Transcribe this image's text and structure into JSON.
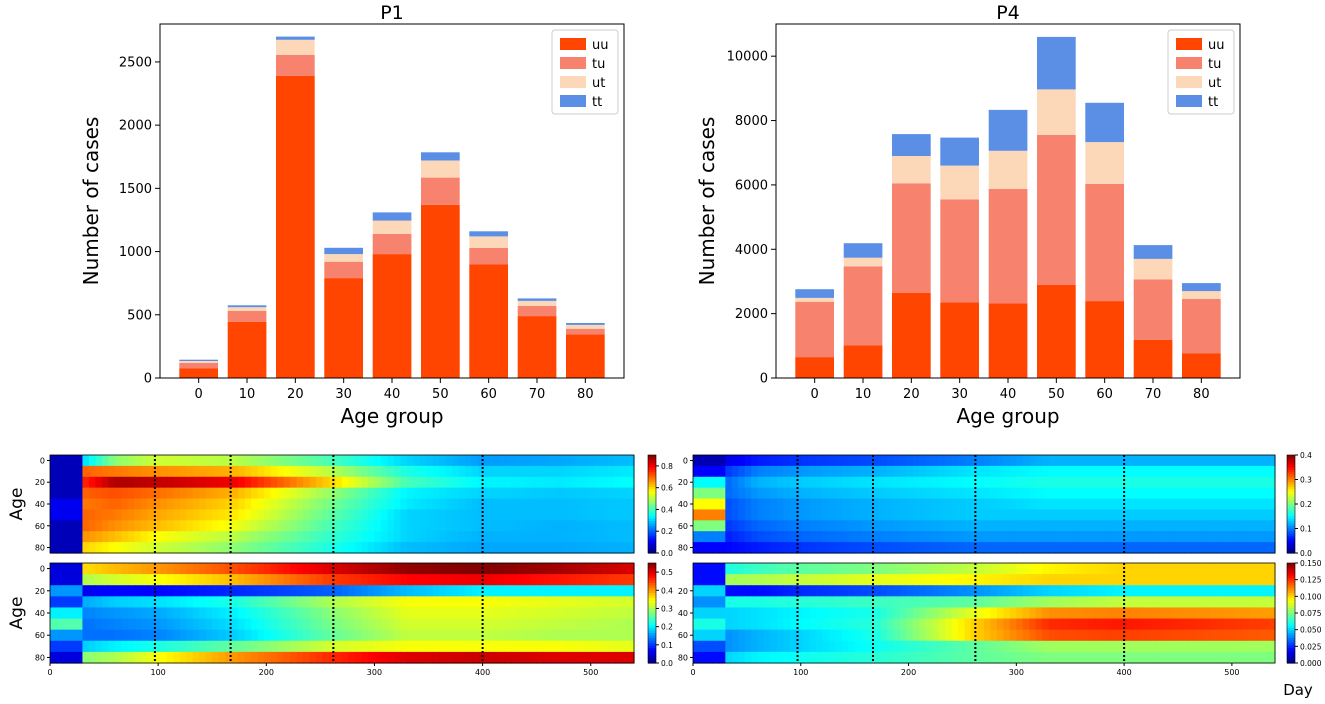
{
  "figure": {
    "day_label": "Day"
  },
  "colorbar_stops": [
    "#00007f",
    "#0000ff",
    "#007fff",
    "#00ffff",
    "#7fff7f",
    "#ffff00",
    "#ff7f00",
    "#ff0000",
    "#7f0000"
  ],
  "chart_data": [
    {
      "type": "bar",
      "stacked": true,
      "title": "P1",
      "xlabel": "Age group",
      "ylabel": "Number of cases",
      "categories": [
        "0",
        "10",
        "20",
        "30",
        "40",
        "50",
        "60",
        "70",
        "80"
      ],
      "xticks": [
        "0",
        "10",
        "20",
        "30",
        "40",
        "50",
        "60",
        "70",
        "80"
      ],
      "yticks": [
        0,
        500,
        1000,
        1500,
        2000,
        2500
      ],
      "ylim": [
        0,
        2800
      ],
      "legend_position": "top-right",
      "series": [
        {
          "name": "uu",
          "color": "#ff4500",
          "values": [
            75,
            445,
            2390,
            790,
            980,
            1370,
            900,
            490,
            345
          ]
        },
        {
          "name": "tu",
          "color": "#f7836f",
          "values": [
            45,
            85,
            165,
            130,
            160,
            215,
            130,
            80,
            45
          ]
        },
        {
          "name": "ut",
          "color": "#fcd8b8",
          "values": [
            15,
            30,
            120,
            60,
            105,
            135,
            90,
            40,
            30
          ]
        },
        {
          "name": "tt",
          "color": "#5b8fe6",
          "values": [
            10,
            15,
            25,
            50,
            65,
            65,
            40,
            20,
            15
          ]
        }
      ]
    },
    {
      "type": "bar",
      "stacked": true,
      "title": "P4",
      "xlabel": "Age group",
      "ylabel": "Number of cases",
      "categories": [
        "0",
        "10",
        "20",
        "30",
        "40",
        "50",
        "60",
        "70",
        "80"
      ],
      "xticks": [
        "0",
        "10",
        "20",
        "30",
        "40",
        "50",
        "60",
        "70",
        "80"
      ],
      "yticks": [
        0,
        2000,
        4000,
        6000,
        8000,
        10000
      ],
      "ylim": [
        0,
        11000
      ],
      "legend_position": "top-right",
      "series": [
        {
          "name": "uu",
          "color": "#ff4500",
          "values": [
            650,
            1020,
            2650,
            2350,
            2320,
            2900,
            2390,
            1180,
            760
          ]
        },
        {
          "name": "tu",
          "color": "#f7836f",
          "values": [
            1720,
            2450,
            3400,
            3200,
            3560,
            4650,
            3640,
            1880,
            1700
          ]
        },
        {
          "name": "ut",
          "color": "#fcd8b8",
          "values": [
            120,
            270,
            850,
            1050,
            1180,
            1420,
            1300,
            640,
            240
          ]
        },
        {
          "name": "tt",
          "color": "#5b8fe6",
          "values": [
            270,
            450,
            680,
            870,
            1270,
            1630,
            1220,
            430,
            250
          ]
        }
      ]
    },
    {
      "type": "heatmap",
      "panel": "P1-top",
      "ylabel": "Age",
      "yticks": [
        "0",
        "20",
        "40",
        "60",
        "80"
      ],
      "xticks": [],
      "x_range": [
        0,
        540
      ],
      "vlines_day": [
        97,
        167,
        262,
        400
      ],
      "colorbar": {
        "min": 0,
        "max": 0.9,
        "ticks": [
          "0.0",
          "0.2",
          "0.4",
          "0.6",
          "0.8"
        ]
      },
      "row_profiles": [
        [
          0.05,
          0.3,
          0.46,
          0.52,
          0.5,
          0.4,
          0.3,
          0.25,
          0.26,
          0.28
        ],
        [
          0.05,
          0.7,
          0.68,
          0.66,
          0.63,
          0.5,
          0.36,
          0.3,
          0.3,
          0.32
        ],
        [
          0.05,
          0.75,
          0.86,
          0.84,
          0.8,
          0.6,
          0.4,
          0.33,
          0.32,
          0.34
        ],
        [
          0.05,
          0.7,
          0.72,
          0.69,
          0.63,
          0.47,
          0.33,
          0.3,
          0.29,
          0.3
        ],
        [
          0.1,
          0.68,
          0.7,
          0.66,
          0.6,
          0.44,
          0.32,
          0.28,
          0.28,
          0.29
        ],
        [
          0.1,
          0.7,
          0.68,
          0.64,
          0.58,
          0.42,
          0.3,
          0.28,
          0.28,
          0.29
        ],
        [
          0.05,
          0.7,
          0.66,
          0.62,
          0.55,
          0.4,
          0.3,
          0.28,
          0.27,
          0.28
        ],
        [
          0.05,
          0.66,
          0.62,
          0.56,
          0.5,
          0.38,
          0.3,
          0.27,
          0.27,
          0.28
        ],
        [
          0.05,
          0.6,
          0.56,
          0.52,
          0.46,
          0.36,
          0.28,
          0.26,
          0.26,
          0.27
        ]
      ]
    },
    {
      "type": "heatmap",
      "panel": "P1-bottom",
      "ylabel": "Age",
      "yticks": [
        "0",
        "20",
        "40",
        "60",
        "80"
      ],
      "xticks": [
        "0",
        "100",
        "200",
        "300",
        "400",
        "500"
      ],
      "x_range": [
        0,
        540
      ],
      "vlines_day": [
        97,
        167,
        262,
        400
      ],
      "colorbar": {
        "min": 0,
        "max": 0.55,
        "ticks": [
          "0.0",
          "0.1",
          "0.2",
          "0.3",
          "0.4",
          "0.5"
        ]
      },
      "row_profiles": [
        [
          0.05,
          0.36,
          0.38,
          0.4,
          0.44,
          0.5,
          0.54,
          0.55,
          0.53,
          0.5
        ],
        [
          0.05,
          0.3,
          0.32,
          0.34,
          0.38,
          0.45,
          0.48,
          0.49,
          0.47,
          0.45
        ],
        [
          0.15,
          0.06,
          0.07,
          0.07,
          0.09,
          0.12,
          0.17,
          0.2,
          0.2,
          0.2
        ],
        [
          0.1,
          0.16,
          0.18,
          0.19,
          0.22,
          0.3,
          0.34,
          0.34,
          0.33,
          0.32
        ],
        [
          0.2,
          0.14,
          0.15,
          0.16,
          0.2,
          0.28,
          0.33,
          0.33,
          0.32,
          0.31
        ],
        [
          0.25,
          0.13,
          0.14,
          0.15,
          0.19,
          0.27,
          0.32,
          0.32,
          0.31,
          0.3
        ],
        [
          0.15,
          0.13,
          0.13,
          0.14,
          0.18,
          0.26,
          0.31,
          0.31,
          0.3,
          0.3
        ],
        [
          0.1,
          0.18,
          0.2,
          0.22,
          0.26,
          0.32,
          0.34,
          0.34,
          0.34,
          0.33
        ],
        [
          0.05,
          0.28,
          0.3,
          0.34,
          0.4,
          0.46,
          0.5,
          0.51,
          0.5,
          0.5
        ]
      ]
    },
    {
      "type": "heatmap",
      "panel": "P4-top",
      "ylabel": "",
      "yticks": [
        "0",
        "20",
        "40",
        "60",
        "80"
      ],
      "xticks": [],
      "x_range": [
        0,
        540
      ],
      "vlines_day": [
        97,
        167,
        262,
        400
      ],
      "colorbar": {
        "min": 0,
        "max": 0.4,
        "ticks": [
          "0.0",
          "0.1",
          "0.2",
          "0.3",
          "0.4"
        ]
      },
      "row_profiles": [
        [
          0.02,
          0.04,
          0.06,
          0.07,
          0.08,
          0.1,
          0.12,
          0.12,
          0.12,
          0.12
        ],
        [
          0.05,
          0.07,
          0.1,
          0.11,
          0.12,
          0.14,
          0.15,
          0.15,
          0.15,
          0.15
        ],
        [
          0.15,
          0.09,
          0.12,
          0.13,
          0.14,
          0.15,
          0.16,
          0.16,
          0.16,
          0.16
        ],
        [
          0.2,
          0.09,
          0.11,
          0.12,
          0.13,
          0.14,
          0.15,
          0.15,
          0.15,
          0.15
        ],
        [
          0.25,
          0.08,
          0.1,
          0.11,
          0.12,
          0.13,
          0.14,
          0.14,
          0.14,
          0.14
        ],
        [
          0.3,
          0.08,
          0.1,
          0.11,
          0.12,
          0.13,
          0.13,
          0.13,
          0.13,
          0.13
        ],
        [
          0.2,
          0.07,
          0.09,
          0.1,
          0.11,
          0.12,
          0.12,
          0.12,
          0.12,
          0.12
        ],
        [
          0.1,
          0.06,
          0.08,
          0.09,
          0.1,
          0.11,
          0.11,
          0.11,
          0.11,
          0.11
        ],
        [
          0.05,
          0.05,
          0.06,
          0.07,
          0.08,
          0.09,
          0.09,
          0.09,
          0.09,
          0.09
        ]
      ]
    },
    {
      "type": "heatmap",
      "panel": "P4-bottom",
      "ylabel": "",
      "yticks": [
        "20",
        "40",
        "60",
        "80"
      ],
      "xticks": [
        "0",
        "100",
        "200",
        "300",
        "400",
        "500"
      ],
      "x_range": [
        0,
        540
      ],
      "vlines_day": [
        97,
        167,
        262,
        400
      ],
      "colorbar": {
        "min": 0,
        "max": 0.15,
        "ticks": [
          "0.000",
          "0.025",
          "0.050",
          "0.075",
          "0.100",
          "0.125",
          "0.150"
        ]
      },
      "row_profiles": [
        [
          0.02,
          0.06,
          0.065,
          0.07,
          0.075,
          0.085,
          0.095,
          0.1,
          0.1,
          0.1
        ],
        [
          0.02,
          0.08,
          0.082,
          0.085,
          0.09,
          0.095,
          0.1,
          0.1,
          0.1,
          0.1
        ],
        [
          0.05,
          0.02,
          0.02,
          0.025,
          0.03,
          0.04,
          0.05,
          0.055,
          0.055,
          0.055
        ],
        [
          0.04,
          0.06,
          0.06,
          0.062,
          0.065,
          0.07,
          0.08,
          0.085,
          0.085,
          0.085
        ],
        [
          0.05,
          0.05,
          0.052,
          0.055,
          0.06,
          0.09,
          0.11,
          0.112,
          0.11,
          0.108
        ],
        [
          0.06,
          0.05,
          0.052,
          0.056,
          0.062,
          0.1,
          0.125,
          0.128,
          0.125,
          0.122
        ],
        [
          0.05,
          0.04,
          0.045,
          0.05,
          0.06,
          0.1,
          0.12,
          0.122,
          0.12,
          0.118
        ],
        [
          0.03,
          0.04,
          0.045,
          0.05,
          0.058,
          0.07,
          0.08,
          0.08,
          0.08,
          0.08
        ],
        [
          0.02,
          0.05,
          0.055,
          0.058,
          0.062,
          0.07,
          0.075,
          0.075,
          0.075,
          0.075
        ]
      ]
    }
  ]
}
